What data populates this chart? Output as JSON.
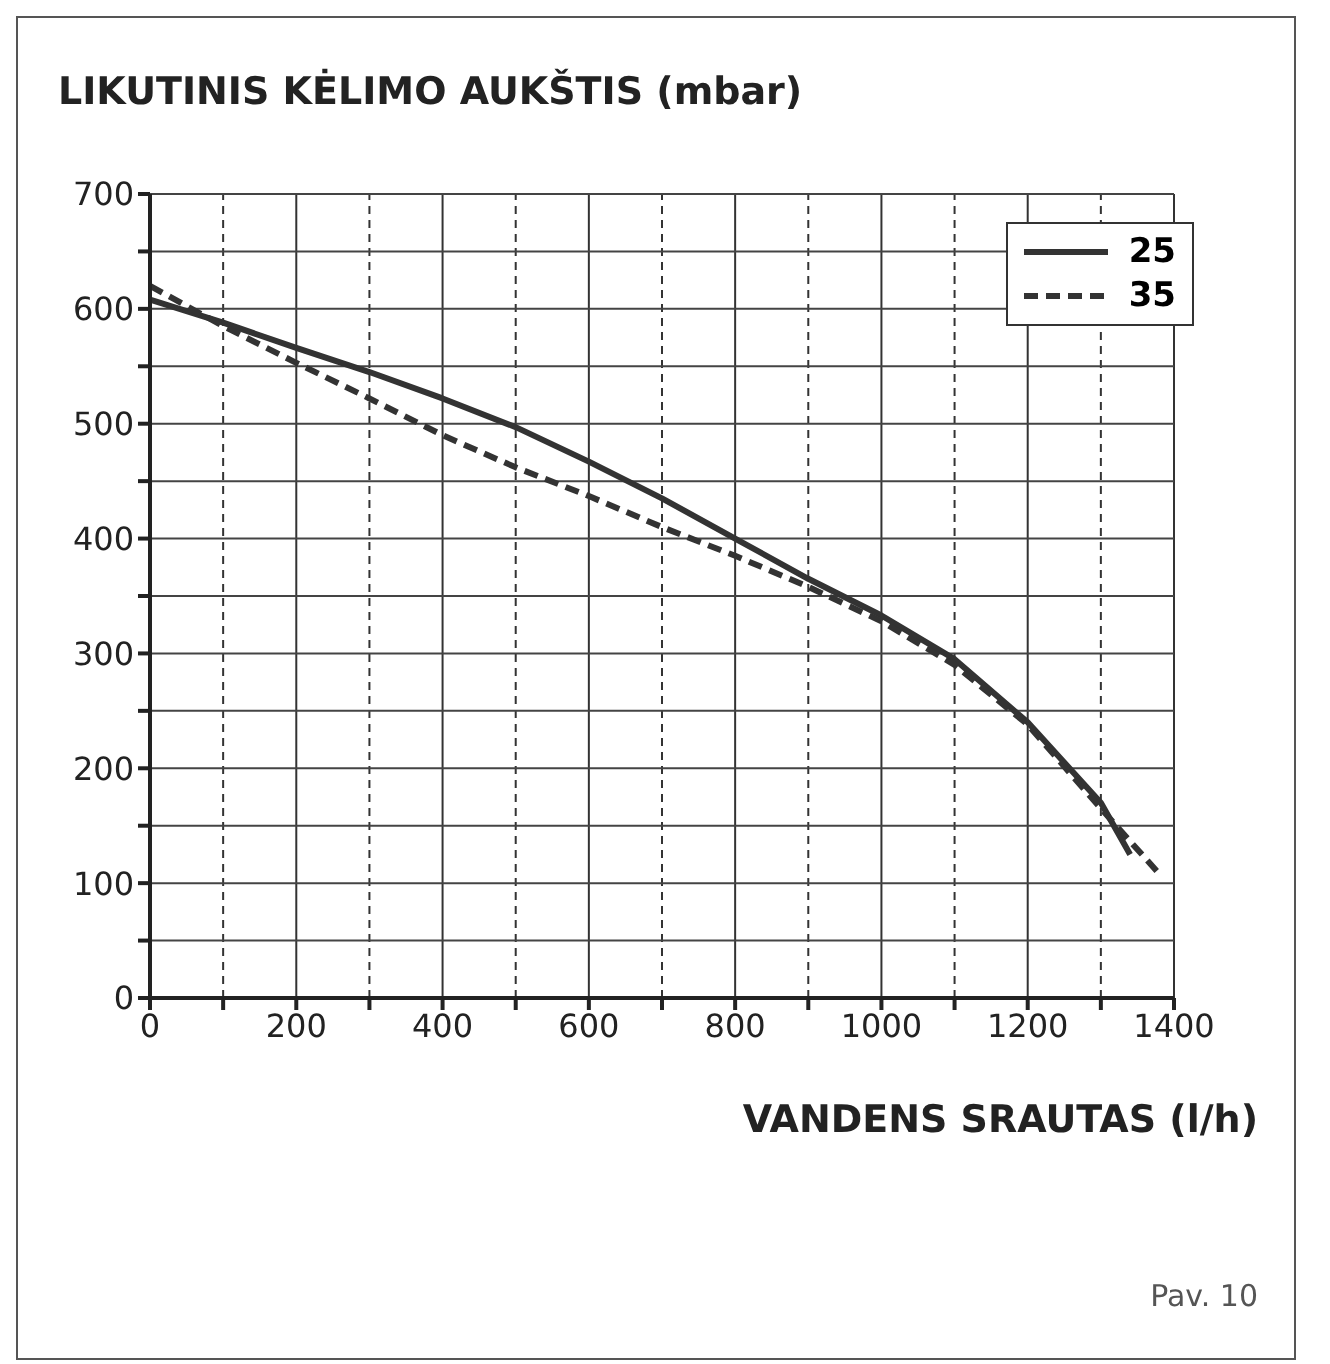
{
  "chart_data": {
    "type": "line",
    "ylabel": "LIKUTINIS KĖLIMO AUKŠTIS (mbar)",
    "xlabel": "VANDENS SRAUTAS (l/h)",
    "annotations": [
      "Pav. 10"
    ],
    "xlim": [
      0,
      1400
    ],
    "ylim": [
      0,
      700
    ],
    "xticks": [
      0,
      {
        "value": 100,
        "label": null
      },
      200,
      {
        "value": 300,
        "label": null
      },
      400,
      {
        "value": 500,
        "label": null
      },
      600,
      {
        "value": 700,
        "label": null
      },
      800,
      {
        "value": 900,
        "label": null
      },
      1000,
      {
        "value": 1100,
        "label": null
      },
      1200,
      {
        "value": 1300,
        "label": null
      },
      1400
    ],
    "yticks": [
      0,
      {
        "value": 50,
        "label": null
      },
      100,
      {
        "value": 150,
        "label": null
      },
      200,
      {
        "value": 250,
        "label": null
      },
      300,
      {
        "value": 350,
        "label": null
      },
      400,
      {
        "value": 450,
        "label": null
      },
      500,
      {
        "value": 550,
        "label": null
      },
      600,
      {
        "value": 650,
        "label": null
      },
      700
    ],
    "grid": true,
    "legend": "top right",
    "marker": "none",
    "series": [
      {
        "name": "25",
        "color": "#333333",
        "line_style": "solid",
        "x": [
          0,
          100,
          200,
          300,
          400,
          500,
          600,
          700,
          800,
          900,
          1000,
          1100,
          1200,
          1300,
          1340
        ],
        "values": [
          608,
          588,
          566,
          545,
          522,
          497,
          467,
          435,
          400,
          365,
          333,
          295,
          240,
          170,
          125
        ]
      },
      {
        "name": "35",
        "color": "#333333",
        "line_style": "dashed",
        "x": [
          0,
          100,
          200,
          300,
          400,
          500,
          600,
          700,
          800,
          900,
          1000,
          1100,
          1200,
          1300,
          1380
        ],
        "values": [
          620,
          585,
          553,
          522,
          490,
          462,
          437,
          410,
          385,
          358,
          328,
          290,
          238,
          165,
          108
        ]
      }
    ]
  }
}
